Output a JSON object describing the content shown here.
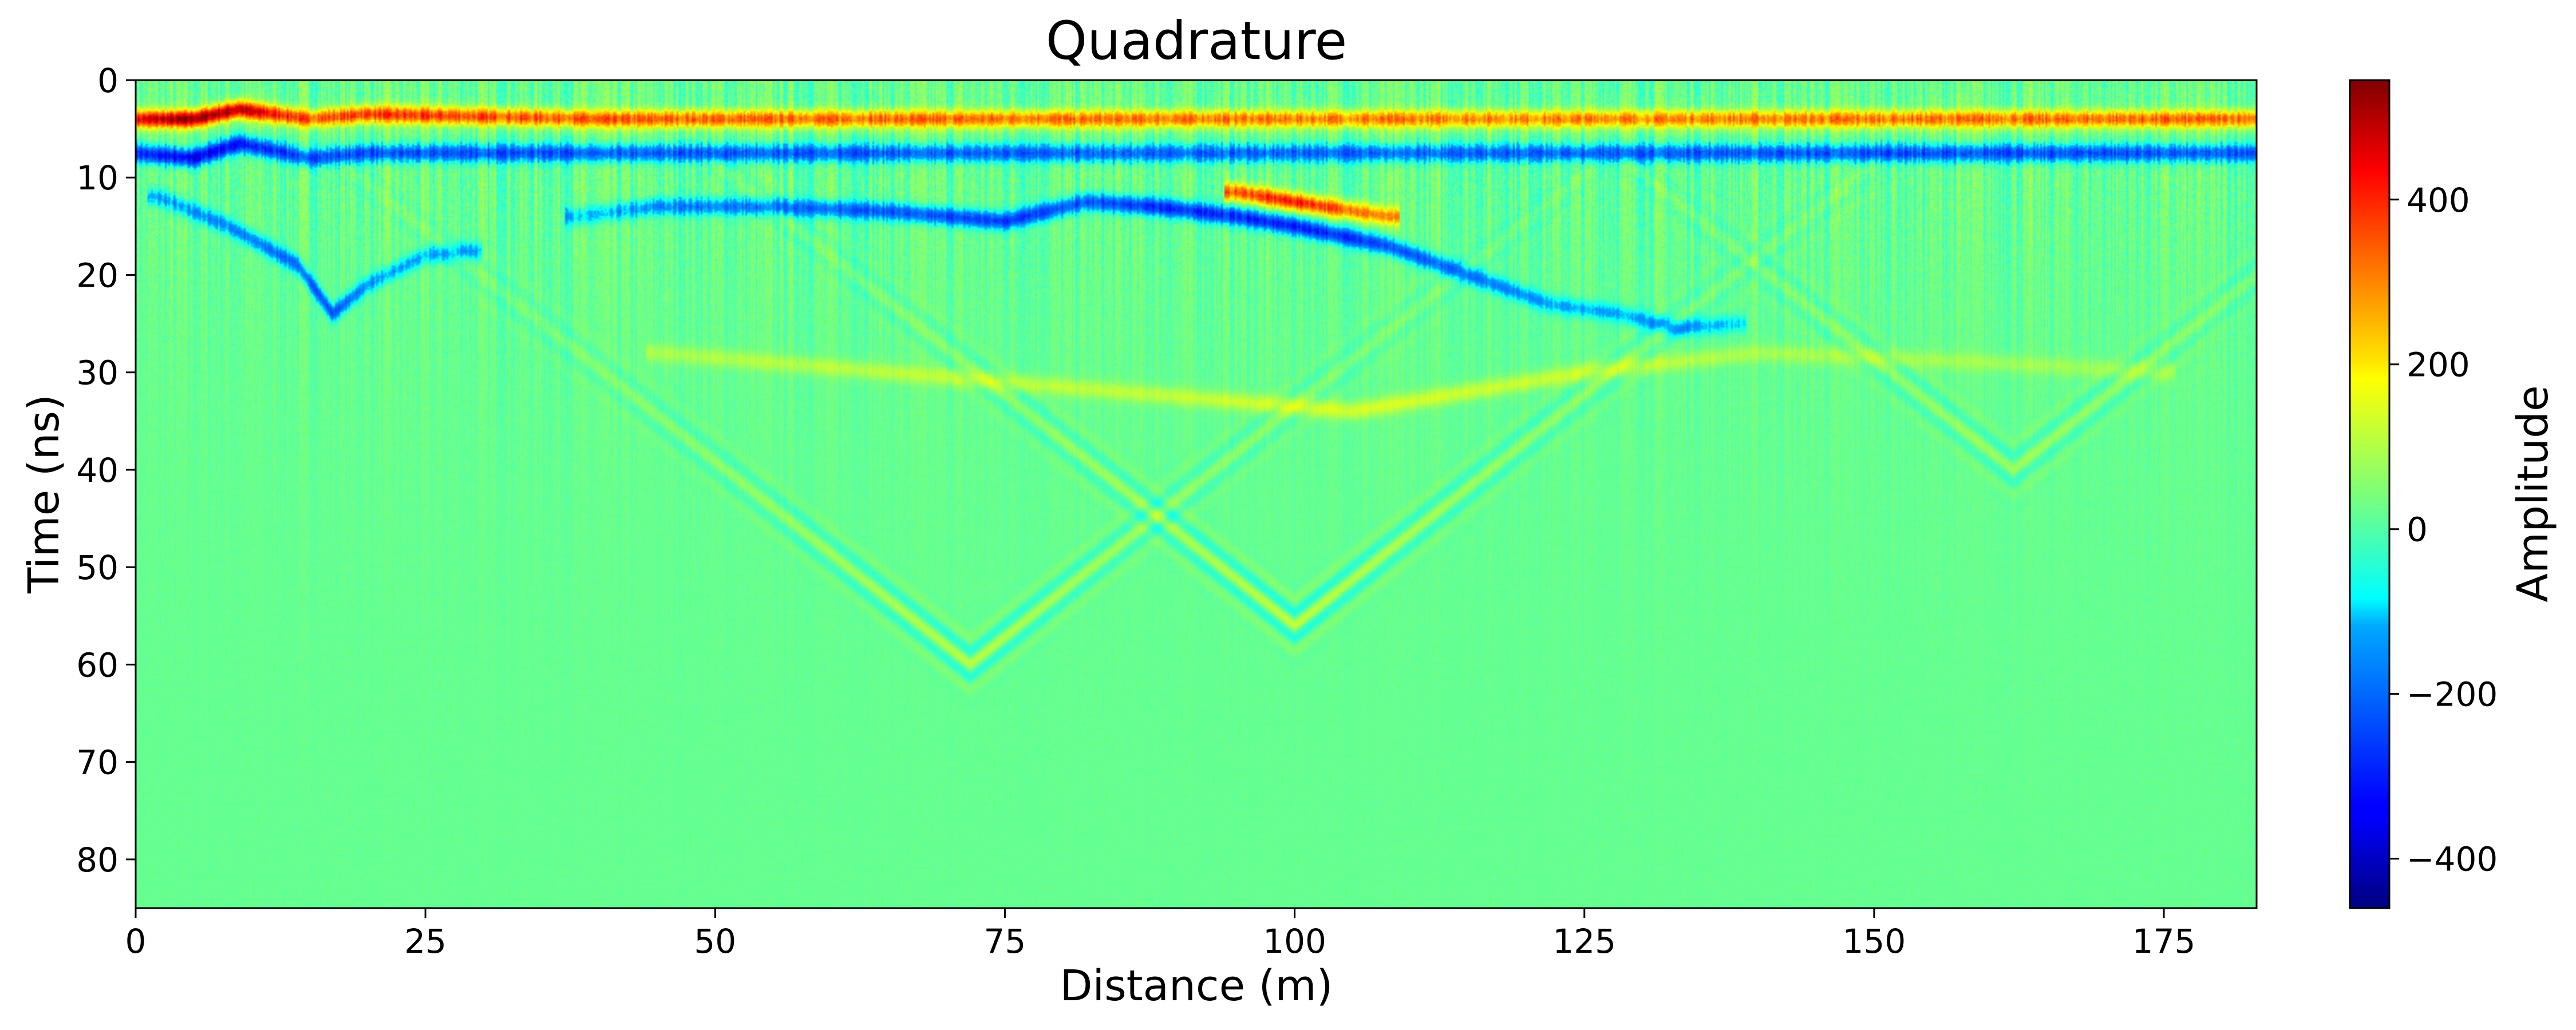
{
  "chart_data": {
    "type": "heatmap",
    "title": "Quadrature",
    "xlabel": "Distance (m)",
    "ylabel": "Time (ns)",
    "colorbar_label": "Amplitude",
    "colormap": "jet",
    "xlim": [
      0,
      183
    ],
    "ylim": [
      85,
      0
    ],
    "clim": [
      -460,
      545
    ],
    "x_ticks": [
      0,
      25,
      50,
      75,
      100,
      125,
      150,
      175
    ],
    "y_ticks": [
      0,
      10,
      20,
      30,
      40,
      50,
      60,
      70,
      80
    ],
    "colorbar_ticks": [
      400,
      200,
      0,
      -200,
      -400
    ],
    "colorbar_tick_labels": [
      "400",
      "200",
      "0",
      "−200",
      "−400"
    ],
    "grid": false,
    "background_amplitude": 20,
    "reflectors": [
      {
        "name": "direct-wave-positive",
        "x": [
          0,
          5,
          9,
          15,
          20,
          40,
          80,
          120,
          160,
          183
        ],
        "t": [
          4,
          4,
          3,
          4,
          3.5,
          4,
          4,
          4,
          4,
          4
        ],
        "amplitude": [
          420,
          520,
          480,
          330,
          360,
          320,
          300,
          280,
          300,
          310
        ]
      },
      {
        "name": "direct-wave-negative",
        "x": [
          0,
          5,
          9,
          15,
          20,
          40,
          80,
          120,
          160,
          183
        ],
        "t": [
          7.5,
          8,
          6.5,
          8,
          7.5,
          7.5,
          7.5,
          7.5,
          7.5,
          7.5
        ],
        "amplitude": [
          -300,
          -380,
          -340,
          -250,
          -260,
          -240,
          -230,
          -220,
          -260,
          -240
        ]
      },
      {
        "name": "interface-negative",
        "x": [
          38,
          45,
          55,
          65,
          75,
          82,
          88,
          95,
          100,
          108,
          115,
          122,
          128,
          133,
          138
        ],
        "t": [
          14,
          13,
          13,
          13.5,
          14.5,
          12.5,
          13,
          14,
          15,
          17,
          20,
          23,
          24,
          25.5,
          25
        ],
        "amplitude": [
          -130,
          -180,
          -200,
          -240,
          -280,
          -240,
          -300,
          -300,
          -320,
          -260,
          -200,
          -150,
          -140,
          -170,
          -110
        ]
      },
      {
        "name": "interface-positive",
        "x": [
          95,
          100,
          108
        ],
        "t": [
          11.5,
          12.5,
          14
        ],
        "amplitude": [
          320,
          400,
          260
        ]
      },
      {
        "name": "shallow-left-dipping",
        "x": [
          2,
          8,
          14,
          17,
          20,
          25,
          29
        ],
        "t": [
          12,
          15,
          19,
          24,
          21,
          18,
          17.5
        ],
        "amplitude": [
          -160,
          -180,
          -220,
          -250,
          -160,
          -150,
          -140
        ]
      },
      {
        "name": "mid-event-positive",
        "x": [
          45,
          65,
          85,
          105,
          125,
          140,
          160,
          175
        ],
        "t": [
          28,
          30,
          32,
          34,
          30,
          28,
          29,
          30
        ],
        "amplitude": [
          70,
          90,
          90,
          120,
          100,
          70,
          60,
          60
        ]
      },
      {
        "name": "diffraction-hyperbola-1",
        "apex_x": 72,
        "apex_t": 60,
        "amplitude": 90
      },
      {
        "name": "diffraction-hyperbola-2",
        "apex_x": 100,
        "apex_t": 56,
        "amplitude": 100
      },
      {
        "name": "diffraction-hyperbola-3",
        "apex_x": 162,
        "apex_t": 40,
        "amplitude": 60
      }
    ]
  }
}
